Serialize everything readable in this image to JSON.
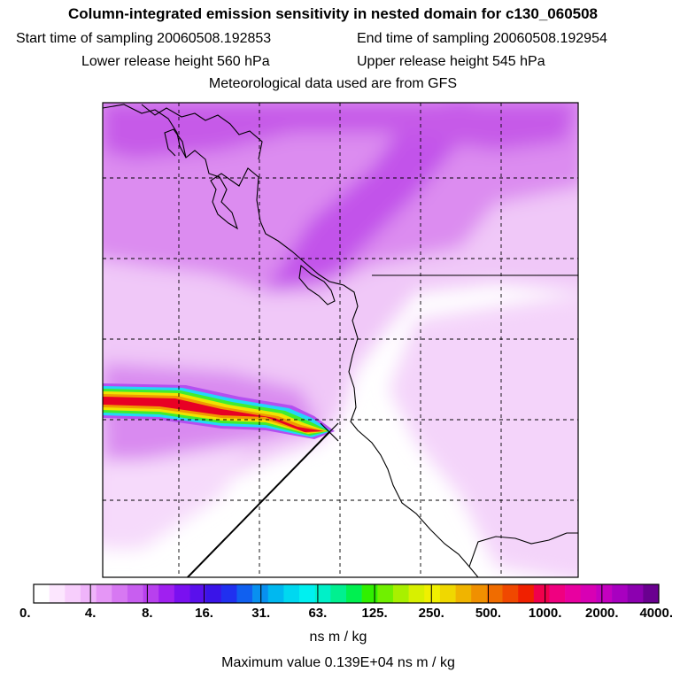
{
  "header": {
    "title": "Column-integrated emission sensitivity in nested domain for c130_060508",
    "start_label": "Start time of sampling 20060508.192853",
    "end_label": "End time of sampling 20060508.192954",
    "lower_label": "Lower release height  560 hPa",
    "upper_label": "Upper release height  545 hPa",
    "met_label": "Meteorological data used are from GFS"
  },
  "colors": {
    "map_background": "#ffffff",
    "sensitivity_light": "#f0c8f8",
    "sensitivity_mid": "#dc8cf0",
    "sensitivity_dark": "#c050e8",
    "plume_low": "#28e8ff",
    "plume_high": "#e8002a"
  },
  "chart_data": {
    "type": "heatmap",
    "title": "Column-integrated emission sensitivity in nested domain for c130_060508",
    "colorbar": {
      "label": "ns m / kg",
      "tick_labels": [
        "0.",
        "4.",
        "8.",
        "16.",
        "31.",
        "63.",
        "125.",
        "250.",
        "500.",
        "1000.",
        "2000.",
        "4000."
      ],
      "colors": [
        "#ffffff",
        "#fce6fe",
        "#f7cefc",
        "#efb4fa",
        "#e596f6",
        "#d778f2",
        "#c85ef0",
        "#b840ee",
        "#a020f0",
        "#7a10f0",
        "#5a10ec",
        "#3a14e8",
        "#2030f0",
        "#1060f0",
        "#0890f0",
        "#00b8f0",
        "#00d8f0",
        "#00f0f0",
        "#00f0c8",
        "#00f090",
        "#00f050",
        "#30f000",
        "#70f000",
        "#a8f000",
        "#d8f000",
        "#f0f000",
        "#f0d800",
        "#f0b400",
        "#f09000",
        "#f06c00",
        "#f04800",
        "#f02000",
        "#f0004c",
        "#f00080",
        "#e800a0",
        "#d800b4",
        "#c400c0",
        "#a800c0",
        "#8c00b0",
        "#6a0090"
      ]
    },
    "max_value_label": "Maximum value  0.139E+04 ns m / kg",
    "release_point": {
      "description": "sampling point",
      "plume_peak_value": 1390
    },
    "grid": true
  }
}
